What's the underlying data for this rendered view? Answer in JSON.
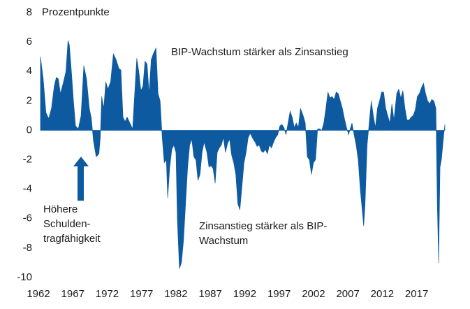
{
  "chart_data": {
    "type": "area",
    "ylabel": "Prozentpunkte",
    "annotations": {
      "upper": [
        "BIP-Wachstum stärker als Zinsanstieg"
      ],
      "lower": [
        "Zinsanstieg stärker als BIP-",
        "Wachstum"
      ],
      "left": [
        "Höhere",
        "Schulden-",
        "tragfähigkeit"
      ]
    },
    "color": "#0e5aa0",
    "xlim": [
      1962,
      2021
    ],
    "xticks": [
      1962,
      1967,
      1972,
      1977,
      1982,
      1987,
      1992,
      1997,
      2002,
      2007,
      2012,
      2017
    ],
    "ylim": [
      -10,
      8
    ],
    "yticks": [
      -10,
      -8,
      -6,
      -4,
      -2,
      0,
      2,
      4,
      6,
      8
    ],
    "x": [
      1962.3,
      1962.7,
      1963.1,
      1963.5,
      1963.9,
      1964.3,
      1964.6,
      1964.9,
      1965.2,
      1965.6,
      1966.0,
      1966.3,
      1966.5,
      1966.8,
      1967.1,
      1967.4,
      1967.8,
      1968.2,
      1968.6,
      1969.0,
      1969.4,
      1969.7,
      1970.0,
      1970.4,
      1970.8,
      1971.0,
      1971.2,
      1971.5,
      1971.8,
      1972.1,
      1972.5,
      1972.9,
      1973.3,
      1973.7,
      1974.0,
      1974.3,
      1974.6,
      1974.9,
      1975.3,
      1975.7,
      1976.0,
      1976.3,
      1976.6,
      1976.9,
      1977.2,
      1977.5,
      1977.8,
      1978.1,
      1978.4,
      1978.7,
      1979.1,
      1979.4,
      1979.7,
      1980.0,
      1980.3,
      1980.6,
      1980.8,
      1981.1,
      1981.4,
      1981.7,
      1982.0,
      1982.2,
      1982.5,
      1982.8,
      1983.1,
      1983.4,
      1983.7,
      1984.0,
      1984.3,
      1984.6,
      1984.9,
      1985.2,
      1985.5,
      1985.8,
      1986.1,
      1986.5,
      1986.8,
      1987.1,
      1987.4,
      1987.7,
      1988.0,
      1988.3,
      1988.6,
      1988.9,
      1989.2,
      1989.5,
      1989.8,
      1990.1,
      1990.4,
      1990.7,
      1991.0,
      1991.3,
      1991.6,
      1991.9,
      1992.2,
      1992.5,
      1992.8,
      1993.1,
      1993.5,
      1993.8,
      1994.1,
      1994.4,
      1994.7,
      1995.0,
      1995.3,
      1995.6,
      1995.9,
      1996.2,
      1996.5,
      1996.8,
      1997.1,
      1997.4,
      1997.7,
      1998.0,
      1998.3,
      1998.6,
      1998.9,
      1999.2,
      1999.5,
      1999.8,
      2000.1,
      2000.5,
      2000.8,
      2001.1,
      2001.4,
      2001.7,
      2002.0,
      2002.3,
      2002.6,
      2002.9,
      2003.2,
      2003.5,
      2003.8,
      2004.1,
      2004.4,
      2004.7,
      2005.0,
      2005.3,
      2005.6,
      2005.9,
      2006.2,
      2006.5,
      2006.8,
      2007.1,
      2007.4,
      2007.6,
      2007.9,
      2008.2,
      2008.5,
      2008.8,
      2009.1,
      2009.3,
      2009.5,
      2009.8,
      2010.1,
      2010.4,
      2010.7,
      2011.0,
      2011.3,
      2011.6,
      2011.9,
      2012.2,
      2012.5,
      2012.8,
      2013.1,
      2013.4,
      2013.7,
      2014.1,
      2014.4,
      2014.7,
      2015.0,
      2015.3,
      2015.6,
      2015.9,
      2016.2,
      2016.5,
      2016.8,
      2017.1,
      2017.4,
      2017.7,
      2018.0,
      2018.3,
      2018.6,
      2018.9,
      2019.2,
      2019.5,
      2019.8,
      2020.0,
      2020.2,
      2020.4,
      2020.6,
      2020.9,
      2021.1
    ],
    "values": [
      5.0,
      3.5,
      1.2,
      0.8,
      1.5,
      3.0,
      3.6,
      3.5,
      2.5,
      3.2,
      4.0,
      6.1,
      5.8,
      4.0,
      2.0,
      0.3,
      0.1,
      1.0,
      4.4,
      3.5,
      1.5,
      0.8,
      -0.7,
      -1.8,
      -1.6,
      -0.5,
      2.3,
      1.5,
      3.3,
      2.8,
      3.3,
      5.2,
      4.8,
      4.2,
      4.1,
      0.9,
      0.6,
      0.9,
      0.5,
      0.1,
      2.5,
      4.9,
      4.0,
      2.7,
      3.0,
      4.7,
      4.5,
      2.5,
      4.8,
      5.2,
      5.6,
      2.5,
      2.0,
      -0.5,
      -2.2,
      -2.0,
      -4.6,
      -2.5,
      -1.3,
      -1.0,
      -1.5,
      -6.0,
      -9.4,
      -9.0,
      -7.5,
      -5.0,
      -2.5,
      -1.0,
      -0.6,
      -1.8,
      -2.0,
      -3.4,
      -3.0,
      -1.5,
      -0.8,
      -1.5,
      -2.5,
      -2.4,
      -2.6,
      -3.6,
      -1.5,
      -1.2,
      -1.0,
      -0.5,
      -1.5,
      -0.9,
      -0.6,
      -1.7,
      -2.2,
      -3.0,
      -5.0,
      -5.4,
      -3.8,
      -2.2,
      -1.5,
      -0.5,
      -0.2,
      -0.5,
      -0.8,
      -1.1,
      -1.0,
      -1.4,
      -1.5,
      -1.3,
      -1.6,
      -1.0,
      -1.2,
      -0.8,
      -0.5,
      -0.3,
      0.3,
      0.4,
      0.2,
      -0.3,
      0.5,
      1.3,
      0.9,
      0.2,
      0.5,
      0.2,
      1.5,
      1.0,
      0.5,
      -1.8,
      -2.0,
      -3.0,
      -2.2,
      -2.0,
      0.1,
      0.1,
      0.0,
      0.5,
      1.5,
      2.6,
      2.2,
      2.3,
      2.1,
      2.6,
      2.5,
      2.0,
      1.5,
      0.8,
      0.2,
      -0.3,
      0.2,
      0.5,
      -0.3,
      -1.0,
      -2.0,
      -4.0,
      -5.5,
      -6.5,
      -5.0,
      -1.0,
      0.5,
      2.0,
      1.0,
      0.2,
      1.5,
      2.0,
      2.6,
      2.6,
      1.5,
      1.0,
      0.5,
      1.8,
      0.7,
      2.5,
      2.8,
      2.2,
      2.7,
      1.5,
      0.7,
      0.7,
      0.9,
      1.0,
      1.4,
      2.3,
      2.5,
      2.9,
      3.2,
      2.5,
      2.0,
      1.8,
      2.1,
      2.0,
      1.5,
      -5.0,
      -9.0,
      -2.5,
      -2.0,
      -0.5,
      0.4
    ]
  }
}
